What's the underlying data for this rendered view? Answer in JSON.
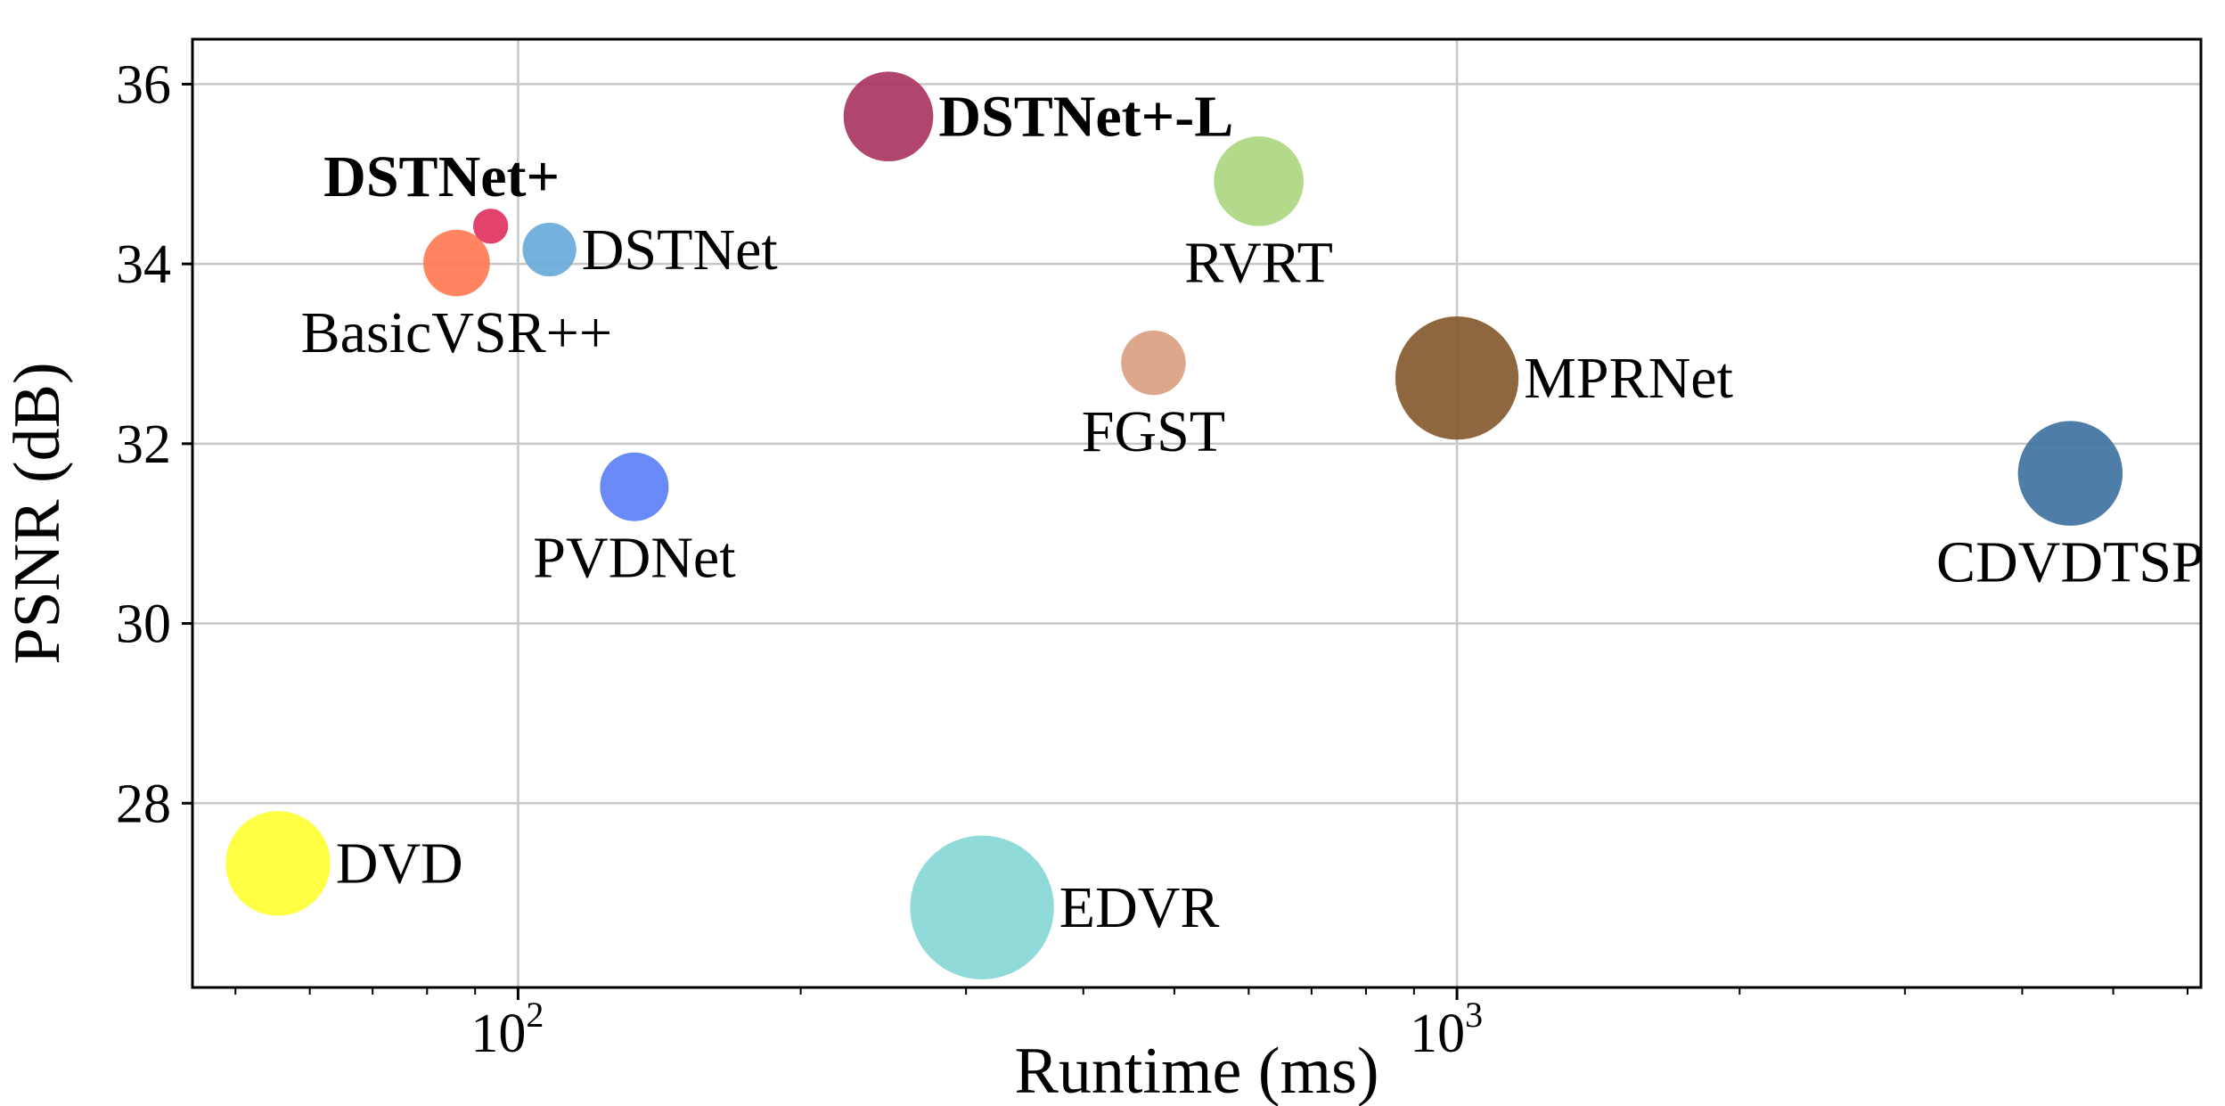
{
  "chart_data": {
    "type": "scatter",
    "xlabel": "Runtime (ms)",
    "ylabel": "PSNR (dB)",
    "xscale": "log",
    "xlim": [
      45,
      6200
    ],
    "ylim": [
      25.95,
      36.5
    ],
    "grid": true,
    "x_ticks": [
      {
        "value": 100,
        "base": "10",
        "exp": "2"
      },
      {
        "value": 1000,
        "base": "10",
        "exp": "3"
      }
    ],
    "y_ticks": [
      {
        "value": 28,
        "label": "28"
      },
      {
        "value": 30,
        "label": "30"
      },
      {
        "value": 32,
        "label": "32"
      },
      {
        "value": 34,
        "label": "34"
      },
      {
        "value": 36,
        "label": "36"
      }
    ],
    "points": [
      {
        "label": "DVD",
        "x": 55.5,
        "y": 27.33,
        "size": 3.8,
        "color": "#ffff33",
        "bold": false,
        "label_pos": "right"
      },
      {
        "label": "BasicVSR++",
        "x": 86,
        "y": 34.01,
        "size": 1.2,
        "color": "#ff7b54",
        "bold": false,
        "label_pos": "below"
      },
      {
        "label": "DSTNet+",
        "x": 93.5,
        "y": 34.42,
        "size": 0.15,
        "color": "#e0335f",
        "bold": true,
        "label_pos": "above"
      },
      {
        "label": "DSTNet",
        "x": 108,
        "y": 34.16,
        "size": 0.65,
        "color": "#6aaad8",
        "bold": false,
        "label_pos": "right"
      },
      {
        "label": "PVDNet",
        "x": 133,
        "y": 31.52,
        "size": 1.3,
        "color": "#5b7ff5",
        "bold": false,
        "label_pos": "below"
      },
      {
        "label": "DSTNet+-L",
        "x": 248,
        "y": 35.64,
        "size": 2.6,
        "color": "#a93662",
        "bold": true,
        "label_pos": "right"
      },
      {
        "label": "EDVR",
        "x": 312,
        "y": 26.84,
        "size": 8.0,
        "color": "#87d7d7",
        "bold": false,
        "label_pos": "right"
      },
      {
        "label": "FGST",
        "x": 475,
        "y": 32.9,
        "size": 1.1,
        "color": "#d9a080",
        "bold": false,
        "label_pos": "below"
      },
      {
        "label": "RVRT",
        "x": 615,
        "y": 34.92,
        "size": 2.6,
        "color": "#acd681",
        "bold": false,
        "label_pos": "below"
      },
      {
        "label": "MPRNet",
        "x": 1000,
        "y": 32.73,
        "size": 5.6,
        "color": "#845a31",
        "bold": false,
        "label_pos": "right"
      },
      {
        "label": "CDVDTSP",
        "x": 4500,
        "y": 31.67,
        "size": 3.8,
        "color": "#3f73a0",
        "bold": false,
        "label_pos": "below"
      }
    ]
  }
}
